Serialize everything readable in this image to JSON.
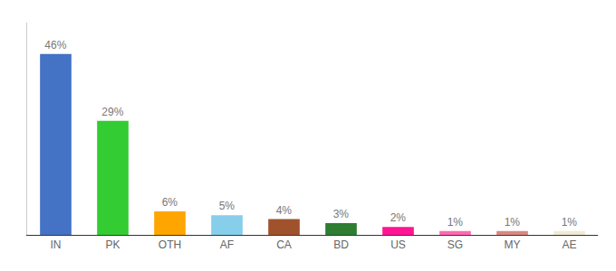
{
  "chart_data": {
    "type": "bar",
    "categories": [
      "IN",
      "PK",
      "OTH",
      "AF",
      "CA",
      "BD",
      "US",
      "SG",
      "MY",
      "AE"
    ],
    "values": [
      46,
      29,
      6,
      5,
      4,
      3,
      2,
      1,
      1,
      1
    ],
    "value_labels": [
      "46%",
      "29%",
      "6%",
      "5%",
      "4%",
      "3%",
      "2%",
      "1%",
      "1%",
      "1%"
    ],
    "colors": [
      "#4472C4",
      "#33CC33",
      "#FFA500",
      "#87CEEB",
      "#A0522D",
      "#2E7D32",
      "#FF1493",
      "#FF69B4",
      "#D98880",
      "#F0EAD6"
    ],
    "ylim": [
      0,
      54
    ],
    "data_labels": true,
    "tick_labels": "x",
    "grid": false
  }
}
